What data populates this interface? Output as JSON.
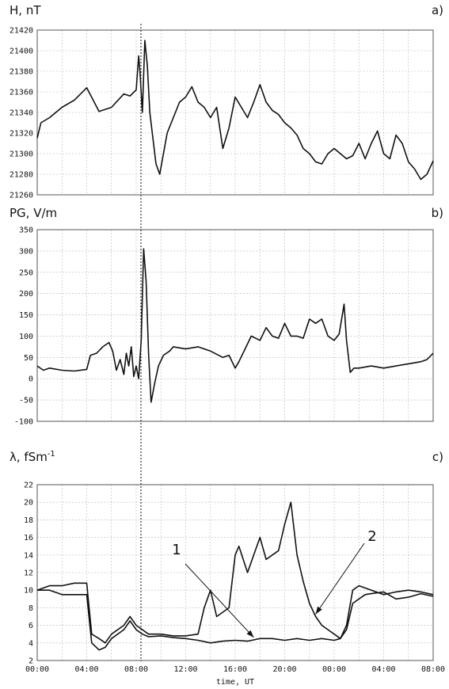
{
  "chart_data": [
    {
      "type": "line",
      "panel_label": "a)",
      "ylabel": "H, nT",
      "ylim": [
        21260,
        21420
      ],
      "yticks": [
        21260,
        21280,
        21300,
        21320,
        21340,
        21360,
        21380,
        21400,
        21420
      ],
      "series": [
        {
          "x": [
            0,
            0.3,
            1,
            2,
            3,
            4,
            5,
            6,
            7,
            7.5,
            8,
            8.2,
            8.3,
            8.5,
            8.7,
            8.9,
            9.1,
            9.3,
            9.6,
            9.9,
            10.2,
            10.5,
            11,
            11.5,
            12,
            12.5,
            13,
            13.5,
            14,
            14.5,
            15,
            15.5,
            16,
            16.5,
            17,
            17.5,
            18,
            18.5,
            19,
            19.5,
            20,
            20.5,
            21,
            21.5,
            22,
            22.5,
            23,
            23.5,
            24,
            24.5,
            25,
            25.5,
            26,
            26.5,
            27,
            27.5,
            28,
            28.5,
            29,
            29.5,
            30,
            30.5,
            31,
            31.5,
            32
          ],
          "values": [
            21315,
            21330,
            21335,
            21345,
            21352,
            21364,
            21341,
            21345,
            21358,
            21356,
            21362,
            21395,
            21380,
            21340,
            21410,
            21385,
            21340,
            21320,
            21290,
            21280,
            21300,
            21320,
            21335,
            21350,
            21355,
            21365,
            21350,
            21345,
            21335,
            21345,
            21305,
            21325,
            21355,
            21345,
            21335,
            21350,
            21367,
            21350,
            21342,
            21338,
            21330,
            21325,
            21318,
            21305,
            21300,
            21292,
            21290,
            21300,
            21305,
            21300,
            21295,
            21298,
            21310,
            21295,
            21310,
            21322,
            21300,
            21295,
            21318,
            21310,
            21292,
            21285,
            21275,
            21280,
            21293
          ]
        }
      ]
    },
    {
      "type": "line",
      "panel_label": "b)",
      "ylabel": "PG, V/m",
      "ylim": [
        -100,
        350
      ],
      "yticks": [
        -100,
        -50,
        0,
        50,
        100,
        150,
        200,
        250,
        300,
        350
      ],
      "series": [
        {
          "x": [
            0,
            0.5,
            1,
            2,
            3,
            4,
            4.3,
            4.8,
            5.3,
            5.8,
            6.1,
            6.4,
            6.7,
            7.0,
            7.2,
            7.4,
            7.6,
            7.8,
            8.0,
            8.2,
            8.4,
            8.6,
            8.8,
            9.0,
            9.2,
            9.5,
            9.8,
            10.2,
            10.7,
            11,
            12,
            13,
            14,
            15,
            15.5,
            16,
            16.3,
            16.8,
            17.3,
            18,
            18.5,
            19,
            19.5,
            20,
            20.5,
            21,
            21.5,
            22,
            22.5,
            23,
            23.5,
            24,
            24.4,
            24.8,
            25,
            25.3,
            25.6,
            26,
            27,
            28,
            29,
            30,
            31,
            31.5,
            32
          ],
          "values": [
            30,
            20,
            25,
            20,
            18,
            22,
            55,
            60,
            75,
            85,
            65,
            20,
            45,
            10,
            60,
            30,
            75,
            5,
            30,
            0,
            90,
            305,
            230,
            60,
            -55,
            -10,
            30,
            55,
            65,
            75,
            70,
            75,
            65,
            50,
            55,
            25,
            40,
            70,
            100,
            90,
            120,
            100,
            95,
            130,
            100,
            100,
            95,
            140,
            130,
            140,
            100,
            90,
            105,
            175,
            90,
            15,
            25,
            25,
            30,
            25,
            30,
            35,
            40,
            45,
            60
          ]
        }
      ]
    },
    {
      "type": "line",
      "panel_label": "c)",
      "ylabel": "λ, fSm⁻¹",
      "ylim": [
        2,
        22
      ],
      "yticks": [
        2,
        4,
        6,
        8,
        10,
        12,
        14,
        16,
        18,
        20,
        22
      ],
      "xlabel": "time, UT",
      "xlim": [
        0,
        32
      ],
      "xticks": [
        "00:00",
        "04:00",
        "08:00",
        "12:00",
        "16:00",
        "20:00",
        "00:00",
        "04:00",
        "08:00"
      ],
      "annotations": [
        {
          "text": "1",
          "series": "1",
          "x": 17.5
        },
        {
          "text": "2",
          "series": "2",
          "x": 22.5
        }
      ],
      "series": [
        {
          "name": "1",
          "x": [
            0,
            1,
            2,
            3,
            4,
            4.4,
            5,
            5.5,
            6,
            7,
            7.5,
            8,
            8.5,
            9,
            10,
            11,
            12,
            13,
            14,
            15,
            16,
            17,
            18,
            19,
            20,
            21,
            22,
            23,
            24,
            24.5,
            25,
            25.5,
            26,
            26.5,
            27,
            28,
            29,
            30,
            31,
            32
          ],
          "values": [
            10,
            10,
            9.5,
            9.5,
            9.5,
            4,
            3.2,
            3.5,
            4.5,
            5.5,
            6.5,
            5.5,
            5,
            4.7,
            4.8,
            4.6,
            4.5,
            4.3,
            4,
            4.2,
            4.3,
            4.2,
            4.5,
            4.5,
            4.3,
            4.5,
            4.3,
            4.5,
            4.3,
            4.5,
            5.5,
            8.5,
            9,
            9.5,
            9.6,
            9.8,
            9,
            9.2,
            9.6,
            9.3
          ]
        },
        {
          "name": "2",
          "x": [
            0,
            1,
            2,
            3,
            4,
            4.4,
            5,
            5.5,
            6,
            7,
            7.5,
            8,
            8.5,
            9,
            10,
            11,
            12,
            13,
            13.5,
            14,
            14.5,
            15,
            15.5,
            16,
            16.3,
            17,
            17.5,
            18,
            18.5,
            19,
            19.5,
            20,
            20.5,
            21,
            21.5,
            22,
            22.5,
            23,
            23.5,
            24,
            24.5,
            25,
            25.5,
            26,
            27,
            28,
            29,
            30,
            31,
            32
          ],
          "values": [
            10,
            10.5,
            10.5,
            10.8,
            10.8,
            5,
            4.5,
            4,
            5,
            6,
            7,
            6,
            5.5,
            5,
            5,
            4.8,
            4.8,
            5,
            8,
            10,
            7,
            7.5,
            8,
            14,
            15,
            12,
            14,
            16,
            13.5,
            14,
            14.5,
            17.5,
            20,
            14,
            11,
            8.5,
            7,
            6,
            5.5,
            5,
            4.5,
            6,
            10,
            10.5,
            10,
            9.5,
            9.8,
            10,
            9.8,
            9.5
          ]
        }
      ]
    }
  ]
}
